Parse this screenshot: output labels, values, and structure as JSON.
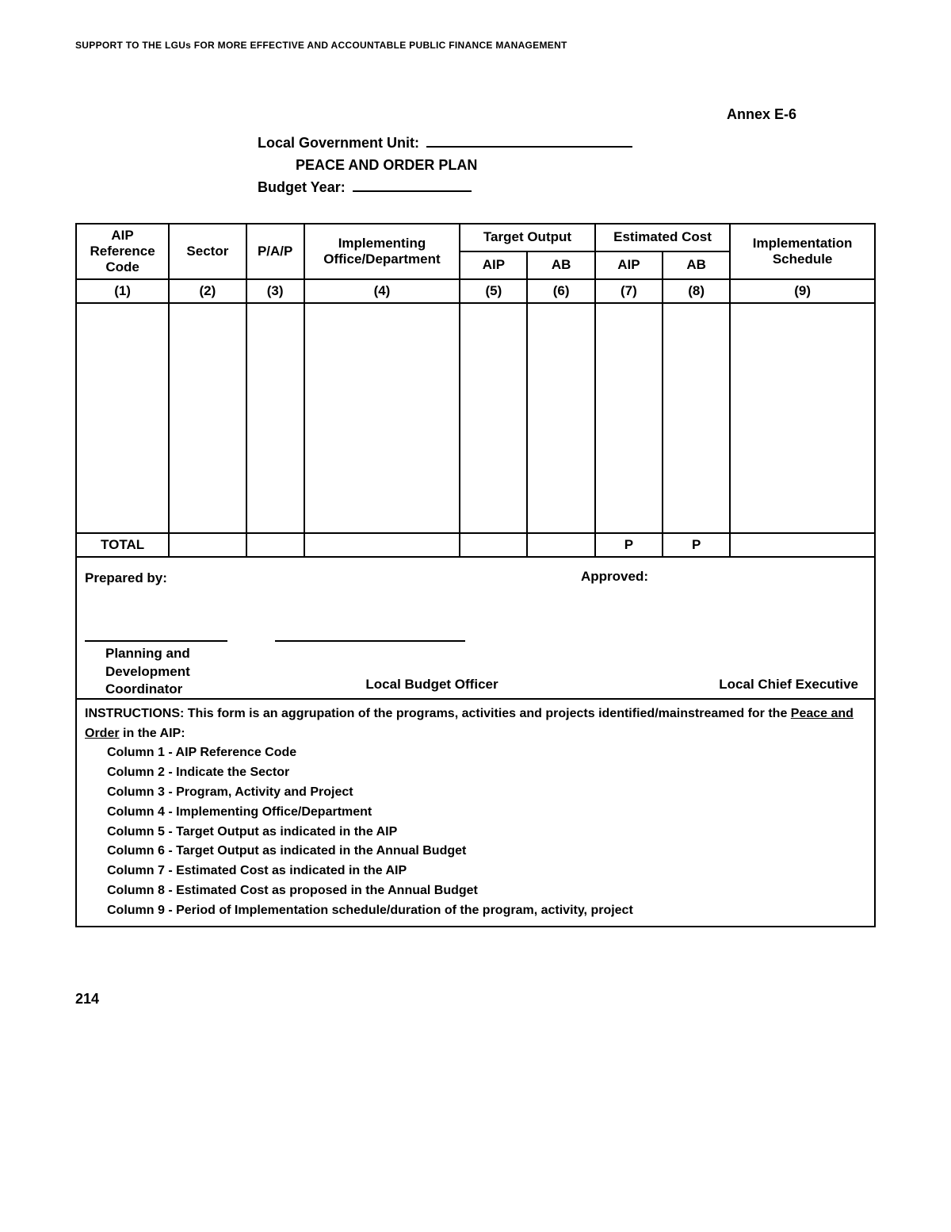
{
  "running_header": "SUPPORT TO THE LGUs FOR MORE EFFECTIVE AND ACCOUNTABLE PUBLIC FINANCE MANAGEMENT",
  "annex": "Annex E-6",
  "form_header": {
    "lgu_label": "Local Government Unit:",
    "plan_title": "PEACE AND ORDER PLAN",
    "year_label": "Budget Year:"
  },
  "table": {
    "headers": {
      "c1": "AIP Reference Code",
      "c2": "Sector",
      "c3": "P/A/P",
      "c4": "Implementing Office/Department",
      "c5_group": "Target Output",
      "c7_group": "Estimated Cost",
      "c9": "Implementation Schedule",
      "sub_aip": "AIP",
      "sub_ab": "AB"
    },
    "col_nums": [
      "(1)",
      "(2)",
      "(3)",
      "(4)",
      "(5)",
      "(6)",
      "(7)",
      "(8)",
      "(9)"
    ],
    "total_label": "TOTAL",
    "total_c7": "P",
    "total_c8": "P"
  },
  "signatures": {
    "prepared_by": "Prepared by:",
    "approved": "Approved:",
    "title1": "Planning and Development Coordinator",
    "title2": "Local Budget Officer",
    "title3": "Local Chief Executive"
  },
  "instructions": {
    "lead_a": "INSTRUCTIONS: This form is an aggrupation of the programs, activities and projects identified/mainstreamed for the ",
    "lead_u": "Peace and Order",
    "lead_b": " in the AIP:",
    "items": [
      "Column 1 - AIP Reference Code",
      "Column 2 -  Indicate the Sector",
      "Column 3 -  Program, Activity and Project",
      "Column 4 - Implementing Office/Department",
      "Column 5 - Target Output as indicated in the AIP",
      "Column 6 - Target Output as indicated in the Annual Budget",
      "Column 7 - Estimated Cost as indicated in the AIP",
      "Column 8 - Estimated Cost as proposed in the Annual Budget",
      "Column 9 - Period of Implementation schedule/duration of the program, activity, project"
    ]
  },
  "page_number": "214"
}
